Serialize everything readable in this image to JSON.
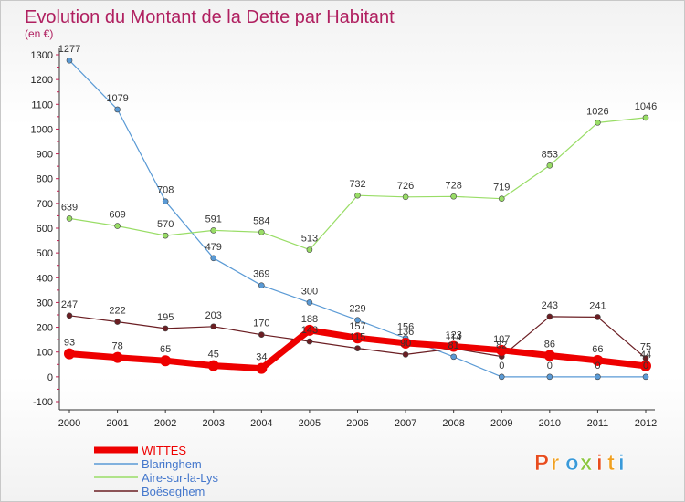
{
  "chart_data": {
    "type": "line",
    "title": "Evolution du Montant de la Dette par Habitant",
    "subtitle": "(en €)",
    "x": [
      "2000",
      "2001",
      "2002",
      "2003",
      "2004",
      "2005",
      "2006",
      "2007",
      "2008",
      "2009",
      "2010",
      "2011",
      "2012"
    ],
    "yticks": [
      -100,
      0,
      100,
      200,
      300,
      400,
      500,
      600,
      700,
      800,
      900,
      1000,
      1100,
      1200,
      1300
    ],
    "ylim": [
      -100,
      1300
    ],
    "grid": false,
    "legend_position": "bottom-left",
    "series": [
      {
        "name": "WITTES",
        "color": "#ee0000",
        "values": [
          93,
          78,
          65,
          45,
          34,
          188,
          157,
          136,
          123,
          107,
          86,
          66,
          44
        ],
        "labels": [
          "93",
          "78",
          "65",
          "45",
          "34",
          "188",
          "157",
          "136",
          "123",
          "107",
          "86",
          "66",
          "44"
        ]
      },
      {
        "name": "Blaringhem",
        "color": "#5a9ad5",
        "values": [
          1277,
          1079,
          708,
          479,
          369,
          300,
          229,
          156,
          81,
          0,
          0,
          0,
          0
        ],
        "labels": [
          "1277",
          "1079",
          "708",
          "479",
          "369",
          "300",
          "229",
          "156",
          "81",
          "0",
          "0",
          "0",
          "0"
        ]
      },
      {
        "name": "Aire-sur-la-Lys",
        "color": "#99dd66",
        "values": [
          639,
          609,
          570,
          591,
          584,
          513,
          732,
          726,
          728,
          719,
          853,
          1026,
          1046
        ],
        "labels": [
          "639",
          "609",
          "570",
          "591",
          "584",
          "513",
          "732",
          "726",
          "728",
          "719",
          "853",
          "1026",
          "1046"
        ]
      },
      {
        "name": "Boëseghem",
        "color": "#6b1e23",
        "values": [
          247,
          222,
          195,
          203,
          170,
          143,
          115,
          90,
          114,
          82,
          243,
          241,
          75
        ],
        "labels": [
          "247",
          "222",
          "195",
          "203",
          "170",
          "143",
          "115",
          "90",
          "114",
          "82",
          "243",
          "241",
          "75"
        ]
      }
    ]
  },
  "logo": {
    "text": "Proxiti",
    "colors": [
      "#e84c1e",
      "#f0a020",
      "#3a9ad9",
      "#8cc63f"
    ]
  }
}
